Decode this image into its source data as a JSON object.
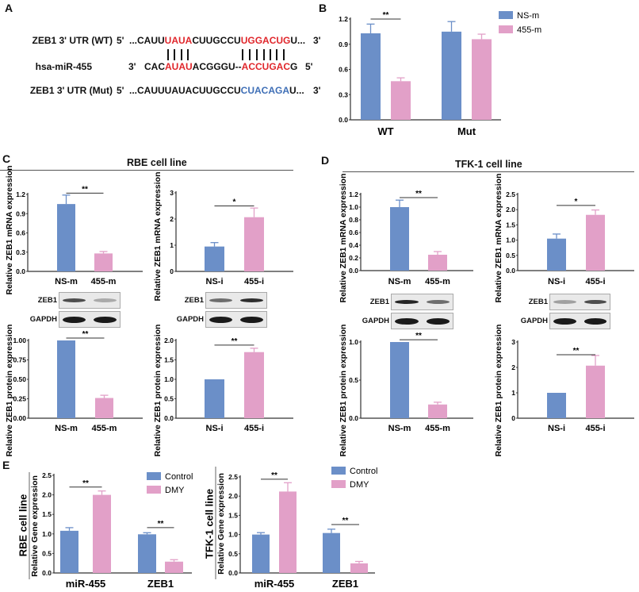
{
  "colors": {
    "blue": "#6b8fc8",
    "pink": "#e2a0c8",
    "red": "#e0262b",
    "mut_blue": "#3f6fb6"
  },
  "panel_a": {
    "letter": "A",
    "rows": [
      {
        "label": "ZEB1 3' UTR (WT)",
        "left": "5'",
        "right": "3'",
        "segments": [
          {
            "t": "...CAUU",
            "c": "k"
          },
          {
            "t": "UAUA",
            "c": "r"
          },
          {
            "t": "CUUGCCU",
            "c": "k"
          },
          {
            "t": "UGGACUG",
            "c": "r"
          },
          {
            "t": "U...",
            "c": "k"
          }
        ]
      },
      {
        "label": "hsa-miR-455",
        "left": "3'",
        "right": "5'",
        "segments": [
          {
            "t": "CAC",
            "c": "k"
          },
          {
            "t": "AUAU",
            "c": "r"
          },
          {
            "t": "ACGGGU--",
            "c": "k"
          },
          {
            "t": "ACCUGAC",
            "c": "r"
          },
          {
            "t": "G",
            "c": "k"
          }
        ]
      },
      {
        "label": "ZEB1 3' UTR (Mut)",
        "left": "5'",
        "right": "3'",
        "segments": [
          {
            "t": "...CAUUUAUACUUGCCU",
            "c": "k"
          },
          {
            "t": "CUACAGA",
            "c": "b"
          },
          {
            "t": "U...",
            "c": "k"
          }
        ]
      }
    ]
  },
  "panel_letters": {
    "b": "B",
    "c": "C",
    "d": "D",
    "e": "E"
  },
  "section_titles": {
    "c": "RBE cell line",
    "d": "TFK-1 cell line"
  },
  "blots": [
    {
      "panel": "C",
      "lanes": [
        "NS-m",
        "455-m"
      ],
      "rows": [
        {
          "label": "ZEB1",
          "bands": [
            0.75,
            0.3
          ]
        },
        {
          "label": "GAPDH",
          "bands": [
            1.0,
            1.0
          ]
        }
      ]
    },
    {
      "panel": "C",
      "lanes": [
        "NS-i",
        "455-i"
      ],
      "rows": [
        {
          "label": "ZEB1",
          "bands": [
            0.6,
            0.9
          ]
        },
        {
          "label": "GAPDH",
          "bands": [
            1.0,
            1.0
          ]
        }
      ]
    },
    {
      "panel": "D",
      "lanes": [
        "NS-m",
        "455-m"
      ],
      "rows": [
        {
          "label": "ZEB1",
          "bands": [
            0.95,
            0.6
          ]
        },
        {
          "label": "GAPDH",
          "bands": [
            1.0,
            1.0
          ]
        }
      ]
    },
    {
      "panel": "D",
      "lanes": [
        "NS-i",
        "455-i"
      ],
      "rows": [
        {
          "label": "ZEB1",
          "bands": [
            0.35,
            0.75
          ]
        },
        {
          "label": "GAPDH",
          "bands": [
            1.0,
            1.0
          ]
        }
      ]
    }
  ],
  "chart_data": [
    {
      "panel": "B",
      "type": "bar",
      "ylabel": "",
      "ylim": [
        0,
        1.2
      ],
      "yticks": [
        "0.0",
        "0.3",
        "0.6",
        "0.9",
        "1.2"
      ],
      "categories": [
        "WT",
        "Mut"
      ],
      "legend": "right",
      "series": [
        {
          "name": "NS-m",
          "color": "#6b8fc8",
          "values": [
            1.03,
            1.05
          ],
          "errors": [
            0.11,
            0.12
          ]
        },
        {
          "name": "455-m",
          "color": "#e2a0c8",
          "values": [
            0.46,
            0.96
          ],
          "errors": [
            0.04,
            0.06
          ]
        }
      ],
      "significance": [
        {
          "category": 0,
          "label": "**",
          "y": 1.2
        }
      ]
    },
    {
      "panel": "C",
      "type": "bar",
      "ylabel": "Relative ZEB1 mRNA expression",
      "ylim": [
        0,
        1.2
      ],
      "yticks": [
        "0.0",
        "0.3",
        "0.6",
        "0.9",
        "1.2"
      ],
      "categories": [
        "NS-m",
        "455-m"
      ],
      "series": [
        {
          "colors": [
            "#6b8fc8",
            "#e2a0c8"
          ],
          "values": [
            1.05,
            0.28
          ],
          "errors": [
            0.14,
            0.03
          ]
        }
      ],
      "significance": [
        {
          "from": 0,
          "to": 1,
          "label": "**",
          "y": 1.22
        }
      ]
    },
    {
      "panel": "C",
      "type": "bar",
      "ylabel": "Relative ZEB1 mRNA expression",
      "ylim": [
        0,
        3
      ],
      "yticks": [
        "0",
        "1",
        "2",
        "3"
      ],
      "categories": [
        "NS-i",
        "455-i"
      ],
      "series": [
        {
          "colors": [
            "#6b8fc8",
            "#e2a0c8"
          ],
          "values": [
            0.95,
            2.07
          ],
          "errors": [
            0.15,
            0.35
          ]
        }
      ],
      "significance": [
        {
          "from": 0,
          "to": 1,
          "label": "*",
          "y": 2.5
        }
      ]
    },
    {
      "panel": "C",
      "type": "bar",
      "ylabel": "Relative ZEB1 protein expression",
      "ylim": [
        0,
        1.0
      ],
      "yticks": [
        "0.00",
        "0.25",
        "0.50",
        "0.75",
        "1.00"
      ],
      "categories": [
        "NS-m",
        "455-m"
      ],
      "series": [
        {
          "colors": [
            "#6b8fc8",
            "#e2a0c8"
          ],
          "values": [
            1.0,
            0.26
          ],
          "errors": [
            0,
            0.035
          ]
        }
      ],
      "significance": [
        {
          "from": 0,
          "to": 1,
          "label": "**",
          "y": 1.03
        }
      ]
    },
    {
      "panel": "C",
      "type": "bar",
      "ylabel": "Relative ZEB1 protein expression",
      "ylim": [
        0,
        2.0
      ],
      "yticks": [
        "0.0",
        "0.5",
        "1.0",
        "1.5",
        "2.0"
      ],
      "categories": [
        "NS-i",
        "455-i"
      ],
      "series": [
        {
          "colors": [
            "#6b8fc8",
            "#e2a0c8"
          ],
          "values": [
            1.0,
            1.7
          ],
          "errors": [
            0,
            0.1
          ]
        }
      ],
      "significance": [
        {
          "from": 0,
          "to": 1,
          "label": "**",
          "y": 1.88
        }
      ]
    },
    {
      "panel": "D",
      "type": "bar",
      "ylabel": "Relative ZEB1 mRNA expression",
      "ylim": [
        0,
        1.2
      ],
      "yticks": [
        "0.0",
        "0.2",
        "0.4",
        "0.6",
        "0.8",
        "1.0",
        "1.2"
      ],
      "categories": [
        "NS-m",
        "455-m"
      ],
      "series": [
        {
          "colors": [
            "#6b8fc8",
            "#e2a0c8"
          ],
          "values": [
            1.0,
            0.25
          ],
          "errors": [
            0.11,
            0.05
          ]
        }
      ],
      "significance": [
        {
          "from": 0,
          "to": 1,
          "label": "**",
          "y": 1.15
        }
      ]
    },
    {
      "panel": "D",
      "type": "bar",
      "ylabel": "Relative ZEB1 mRNA expression",
      "ylim": [
        0,
        2.5
      ],
      "yticks": [
        "0.0",
        "0.5",
        "1.0",
        "1.5",
        "2.0",
        "2.5"
      ],
      "categories": [
        "NS-i",
        "455-i"
      ],
      "series": [
        {
          "colors": [
            "#6b8fc8",
            "#e2a0c8"
          ],
          "values": [
            1.05,
            1.83
          ],
          "errors": [
            0.15,
            0.16
          ]
        }
      ],
      "significance": [
        {
          "from": 0,
          "to": 1,
          "label": "*",
          "y": 2.14
        }
      ]
    },
    {
      "panel": "D",
      "type": "bar",
      "ylabel": "Relative ZEB1 protein expression",
      "ylim": [
        0,
        1.0
      ],
      "yticks": [
        "0.0",
        "0.5",
        "1.0"
      ],
      "categories": [
        "NS-m",
        "455-m"
      ],
      "series": [
        {
          "colors": [
            "#6b8fc8",
            "#e2a0c8"
          ],
          "values": [
            1.0,
            0.18
          ],
          "errors": [
            0,
            0.03
          ]
        }
      ],
      "significance": [
        {
          "from": 0,
          "to": 1,
          "label": "**",
          "y": 1.03
        }
      ]
    },
    {
      "panel": "D",
      "type": "bar",
      "ylabel": "Relative ZEB1 protein expression",
      "ylim": [
        0,
        3
      ],
      "yticks": [
        "0",
        "1",
        "2",
        "3"
      ],
      "categories": [
        "NS-i",
        "455-i"
      ],
      "series": [
        {
          "colors": [
            "#6b8fc8",
            "#e2a0c8"
          ],
          "values": [
            1.0,
            2.07
          ],
          "errors": [
            0,
            0.4
          ]
        }
      ],
      "significance": [
        {
          "from": 0,
          "to": 1,
          "label": "**",
          "y": 2.5
        }
      ]
    },
    {
      "panel": "E",
      "type": "bar",
      "ylabel": "Relative Gene expression",
      "ylabel2": "RBE cell line",
      "ylim": [
        0,
        2.5
      ],
      "yticks": [
        "0.0",
        "0.5",
        "1.0",
        "1.5",
        "2.0",
        "2.5"
      ],
      "categories": [
        "miR-455",
        "ZEB1"
      ],
      "legend": "top-right",
      "series": [
        {
          "name": "Control",
          "color": "#6b8fc8",
          "values": [
            1.08,
            0.99
          ],
          "errors": [
            0.08,
            0.04
          ]
        },
        {
          "name": "DMY",
          "color": "#e2a0c8",
          "values": [
            2.0,
            0.29
          ],
          "errors": [
            0.1,
            0.05
          ]
        }
      ],
      "significance": [
        {
          "category": 0,
          "label": "**",
          "y": 2.2
        },
        {
          "category": 1,
          "label": "**",
          "y": 1.16
        }
      ]
    },
    {
      "panel": "E",
      "type": "bar",
      "ylabel": "Relative Gene expression",
      "ylabel2": "TFK-1 cell line",
      "ylim": [
        0,
        2.5
      ],
      "yticks": [
        "0.0",
        "0.5",
        "1.0",
        "1.5",
        "2.0",
        "2.5"
      ],
      "categories": [
        "miR-455",
        "ZEB1"
      ],
      "legend": "top-right",
      "series": [
        {
          "name": "Control",
          "color": "#6b8fc8",
          "values": [
            1.0,
            1.04
          ],
          "errors": [
            0.05,
            0.1
          ]
        },
        {
          "name": "DMY",
          "color": "#e2a0c8",
          "values": [
            2.12,
            0.25
          ],
          "errors": [
            0.23,
            0.05
          ]
        }
      ],
      "significance": [
        {
          "category": 0,
          "label": "**",
          "y": 2.44
        },
        {
          "category": 1,
          "label": "**",
          "y": 1.26
        }
      ]
    }
  ]
}
